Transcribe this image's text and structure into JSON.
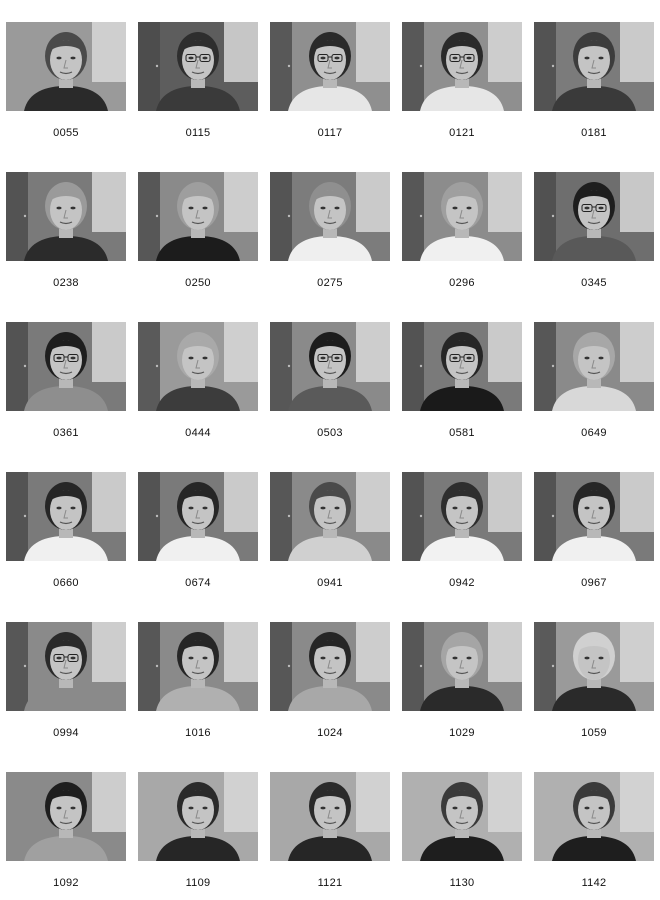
{
  "gallery": {
    "photos": [
      {
        "id": "0055",
        "bg": "#9a9a9a",
        "hair": "#4a4a4a",
        "shirt": "#2a2a2a",
        "glasses": false,
        "door": false
      },
      {
        "id": "0115",
        "bg": "#5d5d5d",
        "hair": "#2e2e2e",
        "shirt": "#3a3a3a",
        "glasses": true,
        "door": true
      },
      {
        "id": "0117",
        "bg": "#8f8f8f",
        "hair": "#2a2a2a",
        "shirt": "#e6e6e6",
        "glasses": true,
        "door": true
      },
      {
        "id": "0121",
        "bg": "#8f8f8f",
        "hair": "#2a2a2a",
        "shirt": "#e6e6e6",
        "glasses": true,
        "door": true
      },
      {
        "id": "0181",
        "bg": "#7b7b7b",
        "hair": "#3c3c3c",
        "shirt": "#3a3a3a",
        "glasses": false,
        "door": true
      },
      {
        "id": "0238",
        "bg": "#7a7a7a",
        "hair": "#9a9a9a",
        "shirt": "#2b2b2b",
        "glasses": false,
        "door": true
      },
      {
        "id": "0250",
        "bg": "#8a8a8a",
        "hair": "#9e9e9e",
        "shirt": "#1c1c1c",
        "glasses": false,
        "door": true
      },
      {
        "id": "0275",
        "bg": "#7c7c7c",
        "hair": "#8f8f8f",
        "shirt": "#efefef",
        "glasses": false,
        "door": true
      },
      {
        "id": "0296",
        "bg": "#8c8c8c",
        "hair": "#9f9f9f",
        "shirt": "#f0f0f0",
        "glasses": false,
        "door": true
      },
      {
        "id": "0345",
        "bg": "#6e6e6e",
        "hair": "#1e1e1e",
        "shirt": "#595959",
        "glasses": true,
        "door": true
      },
      {
        "id": "0361",
        "bg": "#7a7a7a",
        "hair": "#1e1e1e",
        "shirt": "#8e8e8e",
        "glasses": true,
        "door": true
      },
      {
        "id": "0444",
        "bg": "#9a9a9a",
        "hair": "#a9a9a9",
        "shirt": "#3c3c3c",
        "glasses": false,
        "door": true
      },
      {
        "id": "0503",
        "bg": "#8a8a8a",
        "hair": "#1c1c1c",
        "shirt": "#5a5a5a",
        "glasses": true,
        "door": true
      },
      {
        "id": "0581",
        "bg": "#7a7a7a",
        "hair": "#262626",
        "shirt": "#1a1a1a",
        "glasses": true,
        "door": true
      },
      {
        "id": "0649",
        "bg": "#8a8a8a",
        "hair": "#a7a7a7",
        "shirt": "#d8d8d8",
        "glasses": false,
        "door": true
      },
      {
        "id": "0660",
        "bg": "#7a7a7a",
        "hair": "#262626",
        "shirt": "#f0f0f0",
        "glasses": false,
        "door": true
      },
      {
        "id": "0674",
        "bg": "#7a7a7a",
        "hair": "#262626",
        "shirt": "#f0f0f0",
        "glasses": false,
        "door": true
      },
      {
        "id": "0941",
        "bg": "#8a8a8a",
        "hair": "#4a4a4a",
        "shirt": "#d0d0d0",
        "glasses": false,
        "door": true
      },
      {
        "id": "0942",
        "bg": "#7a7a7a",
        "hair": "#2e2e2e",
        "shirt": "#f2f2f2",
        "glasses": false,
        "door": true
      },
      {
        "id": "0967",
        "bg": "#7a7a7a",
        "hair": "#262626",
        "shirt": "#f0f0f0",
        "glasses": false,
        "door": true
      },
      {
        "id": "0994",
        "bg": "#8a8a8a",
        "hair": "#2a2a2a",
        "shirt": "#8a8a8a",
        "glasses": true,
        "door": true
      },
      {
        "id": "1016",
        "bg": "#8a8a8a",
        "hair": "#262626",
        "shirt": "#b0b0b0",
        "glasses": false,
        "door": true
      },
      {
        "id": "1024",
        "bg": "#8a8a8a",
        "hair": "#262626",
        "shirt": "#a8a8a8",
        "glasses": false,
        "door": true
      },
      {
        "id": "1029",
        "bg": "#8a8a8a",
        "hair": "#a5a5a5",
        "shirt": "#2a2a2a",
        "glasses": false,
        "door": true
      },
      {
        "id": "1059",
        "bg": "#9a9a9a",
        "hair": "#d0d0d0",
        "shirt": "#2a2a2a",
        "glasses": false,
        "door": true
      },
      {
        "id": "1092",
        "bg": "#8a8a8a",
        "hair": "#1e1e1e",
        "shirt": "#a0a0a0",
        "glasses": false,
        "door": false
      },
      {
        "id": "1109",
        "bg": "#a8a8a8",
        "hair": "#2a2a2a",
        "shirt": "#262626",
        "glasses": false,
        "door": false
      },
      {
        "id": "1121",
        "bg": "#a8a8a8",
        "hair": "#2a2a2a",
        "shirt": "#262626",
        "glasses": false,
        "door": false
      },
      {
        "id": "1130",
        "bg": "#b0b0b0",
        "hair": "#3a3a3a",
        "shirt": "#1e1e1e",
        "glasses": false,
        "door": false
      },
      {
        "id": "1142",
        "bg": "#b0b0b0",
        "hair": "#3a3a3a",
        "shirt": "#1e1e1e",
        "glasses": false,
        "door": false
      }
    ]
  }
}
